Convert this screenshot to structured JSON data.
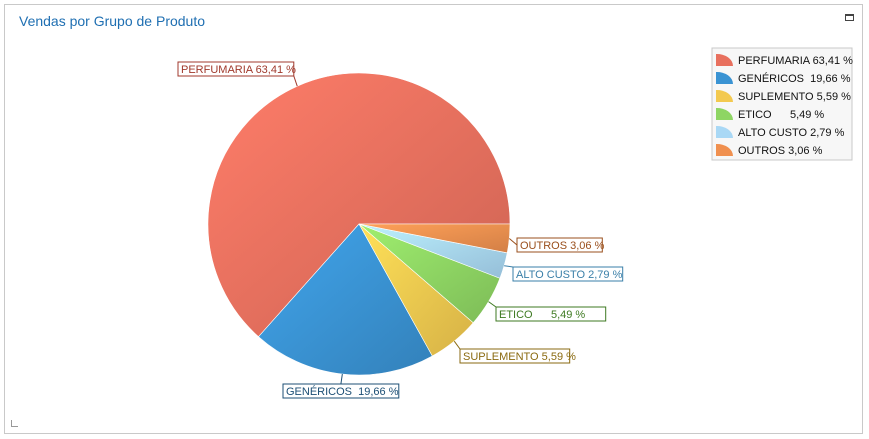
{
  "panel": {
    "title": "Vendas por Grupo de Produto"
  },
  "chart_data": {
    "type": "pie",
    "title": "Vendas por Grupo de Produto",
    "legend_position": "top-right",
    "start_angle_deg": 0,
    "direction": "counterclockwise",
    "slices": [
      {
        "name": "PERFUMARIA",
        "value": 63.41,
        "label": "PERFUMARIA 63,41 %",
        "color": "#e8705e",
        "label_color": "#a0392c"
      },
      {
        "name": "GENÉRICOS",
        "value": 19.66,
        "label": "GENÉRICOS  19,66 %",
        "color": "#3a93d3",
        "label_color": "#1c4f75"
      },
      {
        "name": "SUPLEMENTO",
        "value": 5.59,
        "label": "SUPLEMENTO 5,59 %",
        "color": "#f3c94f",
        "label_color": "#8a6a10"
      },
      {
        "name": "ETICO",
        "value": 5.49,
        "label": "ETICO      5,49 %",
        "color": "#8ed563",
        "label_color": "#3e7a22"
      },
      {
        "name": "ALTO CUSTO",
        "value": 2.79,
        "label": "ALTO CUSTO 2,79 %",
        "color": "#a9d8f5",
        "label_color": "#3a7fa8"
      },
      {
        "name": "OUTROS",
        "value": 3.06,
        "label": "OUTROS 3,06 %",
        "color": "#f0904f",
        "label_color": "#9a4f1c"
      }
    ]
  }
}
